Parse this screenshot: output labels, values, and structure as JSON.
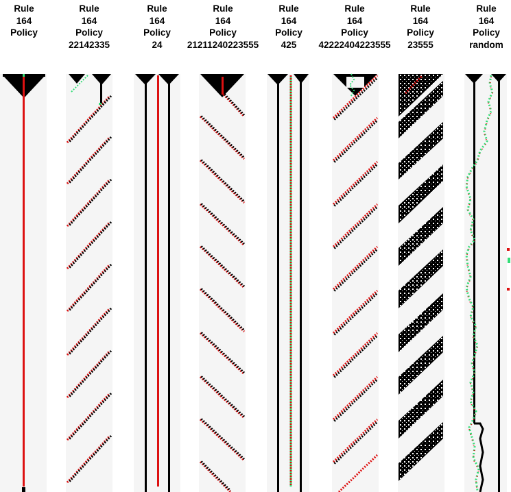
{
  "panels": [
    {
      "rule_label": "Rule",
      "rule_number": "164",
      "policy_label": "Policy",
      "policy_value": ""
    },
    {
      "rule_label": "Rule",
      "rule_number": "164",
      "policy_label": "Policy",
      "policy_value": "22142335"
    },
    {
      "rule_label": "Rule",
      "rule_number": "164",
      "policy_label": "Policy",
      "policy_value": "24"
    },
    {
      "rule_label": "Rule",
      "rule_number": "164",
      "policy_label": "Policy",
      "policy_value": "21211240223555"
    },
    {
      "rule_label": "Rule",
      "rule_number": "164",
      "policy_label": "Policy",
      "policy_value": "425"
    },
    {
      "rule_label": "Rule",
      "rule_number": "164",
      "policy_label": "Policy",
      "policy_value": "42222404223555"
    },
    {
      "rule_label": "Rule",
      "rule_number": "164",
      "policy_label": "Policy",
      "policy_value": "23555"
    },
    {
      "rule_label": "Rule",
      "rule_number": "164",
      "policy_label": "Policy",
      "policy_value": "random"
    }
  ],
  "colors": {
    "background": "#f5f5f5",
    "black_cell": "#000000",
    "red_path": "#dd1111",
    "green_path": "#33dd77"
  }
}
